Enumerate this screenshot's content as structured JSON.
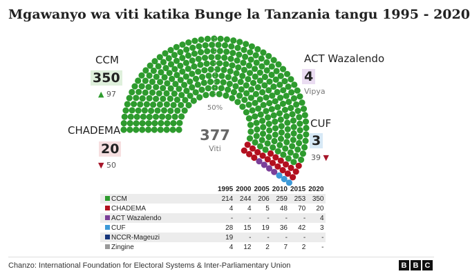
{
  "title": "Mgawanyo wa viti katika Bunge la Tanzania tangu 1995 - 2020",
  "chart_data": [
    {
      "type": "parliament",
      "total": 377,
      "total_label": "Viti",
      "midline_label": "50%",
      "parties": [
        {
          "name": "CCM",
          "seats": 350,
          "change": "97",
          "direction": "up",
          "color": "#2e9b2e",
          "box": "#dff0dc"
        },
        {
          "name": "CHADEMA",
          "seats": 20,
          "change": "50",
          "direction": "down",
          "color": "#b3101f",
          "box": "#f6dfe0"
        },
        {
          "name": "ACT Wazalendo",
          "seats": 4,
          "change": "Vipya",
          "direction": "new",
          "color": "#7b3f98",
          "box": "#eadcf1"
        },
        {
          "name": "CUF",
          "seats": 3,
          "change": "39",
          "direction": "down",
          "color": "#3d9ad8",
          "box": "#d7e9f6"
        }
      ]
    },
    {
      "type": "table",
      "years": [
        "1995",
        "2000",
        "2005",
        "2010",
        "2015",
        "2020"
      ],
      "rows": [
        {
          "name": "CCM",
          "color": "#2e9b2e",
          "values": [
            "214",
            "244",
            "206",
            "259",
            "253",
            "350"
          ]
        },
        {
          "name": "CHADEMA",
          "color": "#b3101f",
          "values": [
            "4",
            "4",
            "5",
            "48",
            "70",
            "20"
          ]
        },
        {
          "name": "ACT Wazalendo",
          "color": "#7b3f98",
          "values": [
            "-",
            "-",
            "-",
            "-",
            "-",
            "4"
          ]
        },
        {
          "name": "CUF",
          "color": "#3d9ad8",
          "values": [
            "28",
            "15",
            "19",
            "36",
            "42",
            "3"
          ]
        },
        {
          "name": "NCCR-Mageuzi",
          "color": "#17357a",
          "values": [
            "19",
            "-",
            "-",
            "-",
            "-",
            "-"
          ]
        },
        {
          "name": "Zingine",
          "color": "#9a9a9a",
          "values": [
            "4",
            "12",
            "2",
            "7",
            "2",
            "-"
          ]
        }
      ]
    }
  ],
  "footer": {
    "source": "Chanzo: International Foundation for Electoral Systems & Inter-Parliamentary Union",
    "logo_letters": [
      "B",
      "B",
      "C"
    ]
  }
}
